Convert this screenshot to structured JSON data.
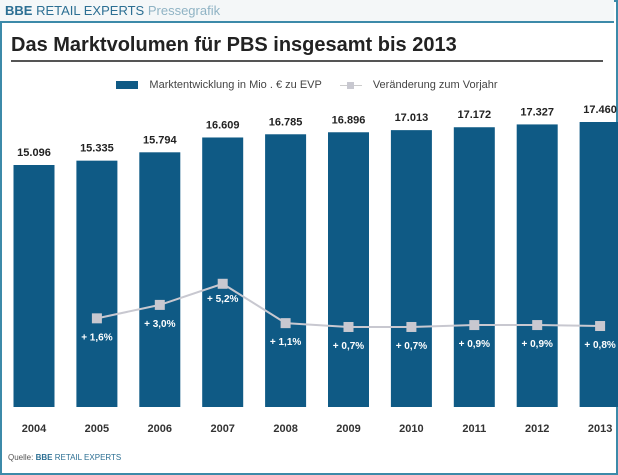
{
  "header": {
    "brand_bold": "BBE",
    "brand_rest": "RETAIL EXPERTS",
    "brand_suffix": "Pressegrafik"
  },
  "footer": {
    "source_label": "Quelle:",
    "source_bold": "BBE",
    "source_rest": "RETAIL EXPERTS"
  },
  "colors": {
    "bar": "#0f5a85",
    "line": "#c8c8d0",
    "border": "#3c8aa9"
  },
  "chart_data": {
    "type": "bar",
    "title": "Das Marktvolumen für PBS insgesamt bis 2013",
    "legend_placement": "top",
    "grid": false,
    "categories": [
      "2004",
      "2005",
      "2006",
      "2007",
      "2008",
      "2009",
      "2010",
      "2011",
      "2012",
      "2013"
    ],
    "series": [
      {
        "name": "Marktentwicklung in Mio . € zu EVP",
        "type": "bar",
        "values": [
          15096,
          15335,
          15794,
          16609,
          16785,
          16896,
          17013,
          17172,
          17327,
          17460
        ],
        "labels": [
          "15.096",
          "15.335",
          "15.794",
          "16.609",
          "16.785",
          "16.896",
          "17.013",
          "17.172",
          "17.327",
          "17.460"
        ]
      },
      {
        "name": "Veränderung zum Vorjahr",
        "type": "line",
        "values": [
          null,
          1.6,
          3.0,
          5.2,
          1.1,
          0.7,
          0.7,
          0.9,
          0.9,
          0.8
        ],
        "labels": [
          "",
          "+ 1,6%",
          "+ 3,0%",
          "+ 5,2%",
          "+ 1,1%",
          "+ 0,7%",
          "+ 0,7%",
          "+ 0,9%",
          "+ 0,9%",
          "+ 0,8%"
        ]
      }
    ]
  }
}
